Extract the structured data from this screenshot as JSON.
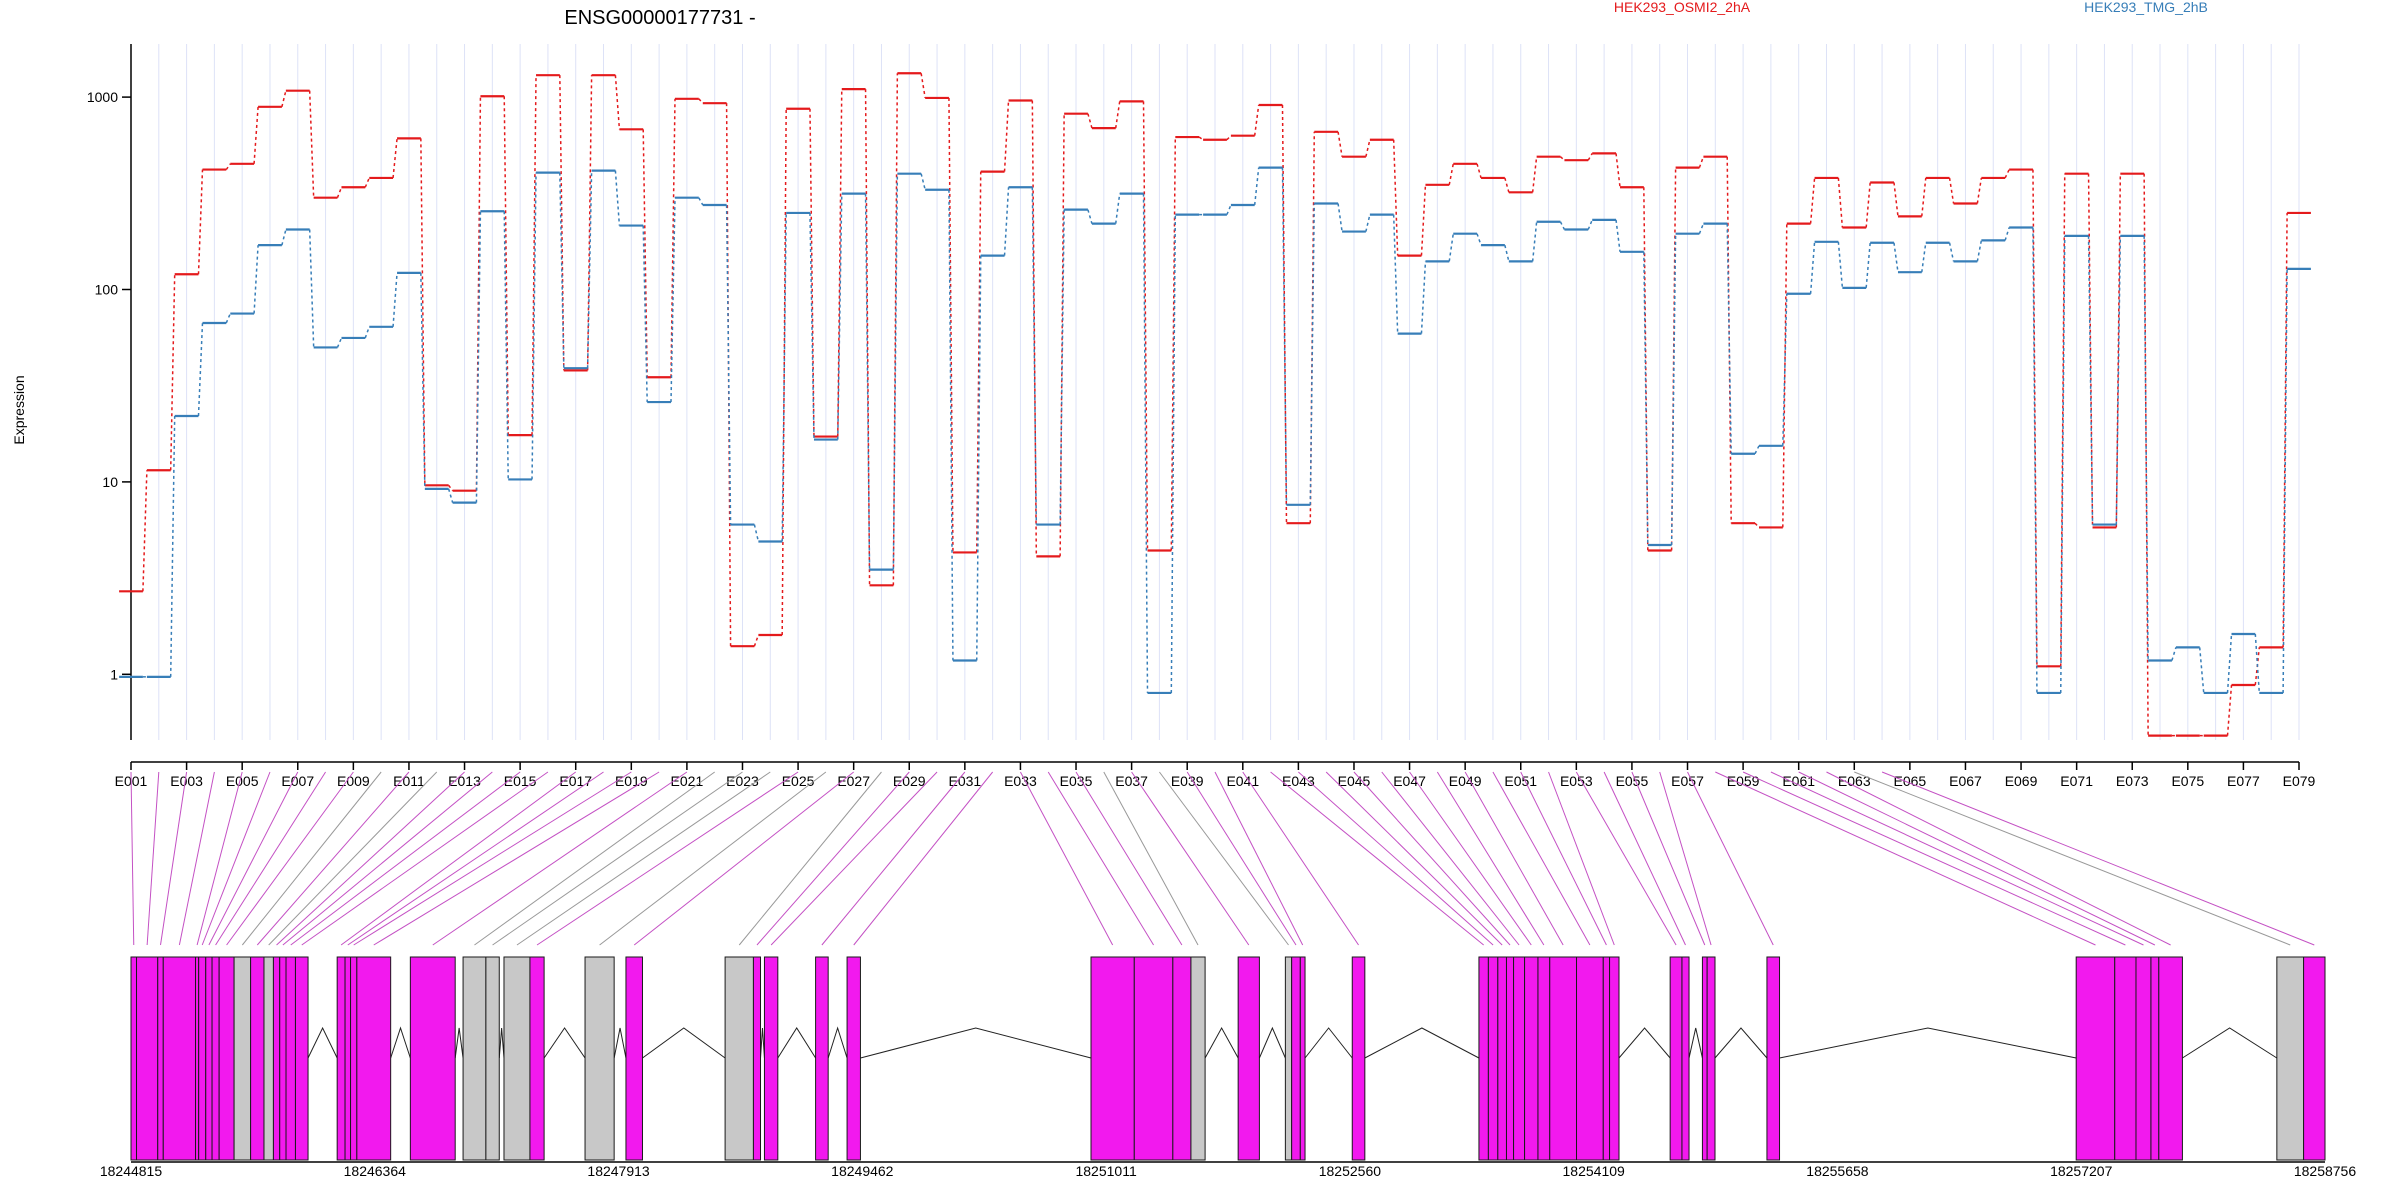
{
  "chart_data": {
    "type": "line",
    "title": "ENSG00000177731 -",
    "ylabel": "Expression",
    "yscale": "log",
    "ylim": [
      0.38,
      1850
    ],
    "yticks": [
      "1",
      "10",
      "100",
      "1000"
    ],
    "categories": [
      "E001",
      "E002",
      "E003",
      "E004",
      "E005",
      "E006",
      "E007",
      "E008",
      "E009",
      "E010",
      "E011",
      "E012",
      "E013",
      "E014",
      "E015",
      "E016",
      "E017",
      "E018",
      "E019",
      "E020",
      "E021",
      "E022",
      "E023",
      "E024",
      "E025",
      "E026",
      "E027",
      "E028",
      "E029",
      "E030",
      "E031",
      "E032",
      "E033",
      "E034",
      "E035",
      "E036",
      "E037",
      "E038",
      "E039",
      "E040",
      "E041",
      "E042",
      "E043",
      "E044",
      "E045",
      "E046",
      "E047",
      "E048",
      "E049",
      "E050",
      "E051",
      "E052",
      "E053",
      "E054",
      "E055",
      "E056",
      "E057",
      "E058",
      "E059",
      "E060",
      "E061",
      "E062",
      "E063",
      "E064",
      "E065",
      "E066",
      "E067",
      "E068",
      "E069",
      "E070",
      "E071",
      "E072",
      "E073",
      "E074",
      "E075",
      "E076",
      "E077",
      "E078",
      "E079"
    ],
    "xtick_labels": [
      "E001",
      "E003",
      "E005",
      "E007",
      "E009",
      "E011",
      "E013",
      "E015",
      "E017",
      "E019",
      "E021",
      "E023",
      "E025",
      "E027",
      "E029",
      "E031",
      "E033",
      "E035",
      "E037",
      "E039",
      "E041",
      "E043",
      "E045",
      "E047",
      "E049",
      "E051",
      "E053",
      "E055",
      "E057",
      "E059",
      "E061",
      "E063",
      "E065",
      "E067",
      "E069",
      "E071",
      "E073",
      "E075",
      "E077",
      "E079"
    ],
    "series": [
      {
        "name": "HEK293_OSMI2_2hA",
        "color": "#e41a1c",
        "legend_position": "top",
        "values": [
          2.7,
          11.5,
          120,
          420,
          450,
          890,
          1080,
          300,
          340,
          380,
          610,
          9.6,
          9,
          1010,
          17.5,
          1300,
          38,
          1300,
          680,
          35,
          980,
          930,
          1.4,
          1.6,
          870,
          17.2,
          1100,
          2.9,
          1330,
          990,
          4.3,
          410,
          960,
          4.1,
          820,
          690,
          950,
          4.4,
          620,
          600,
          630,
          910,
          6.1,
          660,
          490,
          600,
          150,
          350,
          450,
          380,
          320,
          490,
          470,
          510,
          340,
          4.4,
          430,
          490,
          6.1,
          5.8,
          220,
          380,
          210,
          360,
          240,
          380,
          280,
          380,
          420,
          1.1,
          400,
          5.8,
          400,
          0.48,
          0.48,
          0.48,
          0.88,
          1.38,
          250
        ]
      },
      {
        "name": "HEK293_TMG_2hB",
        "color": "#377eb8",
        "legend_position": "top",
        "values": [
          0.97,
          0.97,
          22,
          67,
          75,
          170,
          205,
          50,
          56,
          64,
          122,
          9.2,
          7.8,
          255,
          10.3,
          405,
          39,
          415,
          215,
          26,
          300,
          275,
          6,
          4.9,
          250,
          16.6,
          315,
          3.5,
          400,
          330,
          1.18,
          150,
          340,
          6,
          260,
          220,
          315,
          0.8,
          245,
          245,
          275,
          430,
          7.6,
          280,
          200,
          245,
          59,
          140,
          195,
          170,
          140,
          225,
          205,
          230,
          157,
          4.7,
          195,
          220,
          14,
          15.4,
          95,
          177,
          102,
          175,
          123,
          175,
          140,
          180,
          210,
          0.8,
          190,
          6,
          190,
          1.18,
          1.38,
          0.8,
          1.62,
          0.8,
          128
        ]
      }
    ],
    "gene_model": {
      "type": "gene_structure",
      "genomic_ticks": [
        "18244815",
        "18246364",
        "18247913",
        "18249462",
        "18251011",
        "18252560",
        "18254109",
        "18255658",
        "18257207",
        "18258756"
      ],
      "genomic_range": [
        18244815,
        18258756
      ],
      "highlight_color": "#f219ee",
      "default_color": "#c8c8c8",
      "exons": [
        {
          "start": 18244815,
          "end": 18244850,
          "h": 1
        },
        {
          "start": 18244850,
          "end": 18244985,
          "h": 1
        },
        {
          "start": 18244985,
          "end": 18245020,
          "h": 1
        },
        {
          "start": 18245020,
          "end": 18245225,
          "h": 1
        },
        {
          "start": 18245225,
          "end": 18245245,
          "h": 1
        },
        {
          "start": 18245245,
          "end": 18245290,
          "h": 1
        },
        {
          "start": 18245290,
          "end": 18245330,
          "h": 1
        },
        {
          "start": 18245330,
          "end": 18245375,
          "h": 1
        },
        {
          "start": 18245375,
          "end": 18245470,
          "h": 1
        },
        {
          "start": 18245470,
          "end": 18245575,
          "h": 0
        },
        {
          "start": 18245575,
          "end": 18245660,
          "h": 1
        },
        {
          "start": 18245660,
          "end": 18245720,
          "h": 0
        },
        {
          "start": 18245720,
          "end": 18245760,
          "h": 1
        },
        {
          "start": 18245760,
          "end": 18245800,
          "h": 1
        },
        {
          "start": 18245800,
          "end": 18245860,
          "h": 1
        },
        {
          "start": 18245860,
          "end": 18245940,
          "h": 1
        },
        {
          "start": 18246125,
          "end": 18246175,
          "h": 1
        },
        {
          "start": 18246175,
          "end": 18246210,
          "h": 1
        },
        {
          "start": 18246210,
          "end": 18246250,
          "h": 1
        },
        {
          "start": 18246250,
          "end": 18246465,
          "h": 1
        },
        {
          "start": 18246590,
          "end": 18246875,
          "h": 1
        },
        {
          "start": 18246925,
          "end": 18247070,
          "h": 0
        },
        {
          "start": 18247070,
          "end": 18247155,
          "h": 0
        },
        {
          "start": 18247185,
          "end": 18247350,
          "h": 0
        },
        {
          "start": 18247350,
          "end": 18247440,
          "h": 1
        },
        {
          "start": 18247700,
          "end": 18247885,
          "h": 0
        },
        {
          "start": 18247960,
          "end": 18248065,
          "h": 1
        },
        {
          "start": 18248590,
          "end": 18248770,
          "h": 0
        },
        {
          "start": 18248770,
          "end": 18248815,
          "h": 1
        },
        {
          "start": 18248840,
          "end": 18248925,
          "h": 1
        },
        {
          "start": 18249165,
          "end": 18249245,
          "h": 1
        },
        {
          "start": 18249365,
          "end": 18249450,
          "h": 1
        },
        {
          "start": 18250915,
          "end": 18251190,
          "h": 1
        },
        {
          "start": 18251190,
          "end": 18251435,
          "h": 1
        },
        {
          "start": 18251435,
          "end": 18251550,
          "h": 1
        },
        {
          "start": 18251550,
          "end": 18251640,
          "h": 0
        },
        {
          "start": 18251850,
          "end": 18251985,
          "h": 1
        },
        {
          "start": 18252150,
          "end": 18252190,
          "h": 0
        },
        {
          "start": 18252190,
          "end": 18252245,
          "h": 1
        },
        {
          "start": 18252245,
          "end": 18252275,
          "h": 1
        },
        {
          "start": 18252575,
          "end": 18252655,
          "h": 1
        },
        {
          "start": 18253380,
          "end": 18253440,
          "h": 1
        },
        {
          "start": 18253440,
          "end": 18253500,
          "h": 1
        },
        {
          "start": 18253500,
          "end": 18253555,
          "h": 1
        },
        {
          "start": 18253555,
          "end": 18253600,
          "h": 1
        },
        {
          "start": 18253600,
          "end": 18253670,
          "h": 1
        },
        {
          "start": 18253670,
          "end": 18253755,
          "h": 1
        },
        {
          "start": 18253755,
          "end": 18253830,
          "h": 1
        },
        {
          "start": 18253830,
          "end": 18254000,
          "h": 1
        },
        {
          "start": 18254000,
          "end": 18254170,
          "h": 1
        },
        {
          "start": 18254170,
          "end": 18254210,
          "h": 1
        },
        {
          "start": 18254210,
          "end": 18254270,
          "h": 1
        },
        {
          "start": 18254595,
          "end": 18254670,
          "h": 1
        },
        {
          "start": 18254670,
          "end": 18254715,
          "h": 1
        },
        {
          "start": 18254800,
          "end": 18254830,
          "h": 1
        },
        {
          "start": 18254830,
          "end": 18254880,
          "h": 1
        },
        {
          "start": 18255210,
          "end": 18255290,
          "h": 1
        },
        {
          "start": 18257175,
          "end": 18257420,
          "h": 1
        },
        {
          "start": 18257420,
          "end": 18257555,
          "h": 1
        },
        {
          "start": 18257555,
          "end": 18257650,
          "h": 1
        },
        {
          "start": 18257650,
          "end": 18257700,
          "h": 1
        },
        {
          "start": 18257700,
          "end": 18257850,
          "h": 1
        },
        {
          "start": 18258450,
          "end": 18258620,
          "h": 0
        },
        {
          "start": 18258620,
          "end": 18258756,
          "h": 1
        }
      ]
    }
  }
}
